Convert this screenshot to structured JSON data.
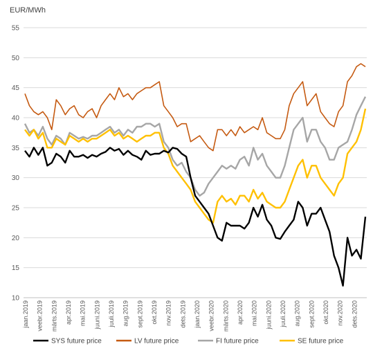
{
  "chart_data": {
    "type": "line",
    "unit_label": "EUR/MWh",
    "ylim": [
      10,
      55
    ],
    "y_ticks": [
      10,
      15,
      20,
      25,
      30,
      35,
      40,
      45,
      50,
      55
    ],
    "grid": "horizontal",
    "legend_position": "bottom",
    "x_tick_labels": [
      "jaan.2019",
      "veebr.2019",
      "märts.2019",
      "apr.2019",
      "mai.2019",
      "juuni.2019",
      "juuli.2019",
      "aug.2019",
      "sept.2019",
      "okt.2019",
      "nov.2019",
      "dets.2019",
      "jaan.2020",
      "veebr.2020",
      "märts.2020",
      "apr.2020",
      "mai.2020",
      "juuni.2020",
      "juuli.2020",
      "aug.2020",
      "sept.2020",
      "okt.2020",
      "nov.2020",
      "dets.2020"
    ],
    "series": [
      {
        "name": "SYS future price",
        "color": "#000000",
        "values": [
          34.5,
          33.5,
          35,
          33.8,
          35,
          32,
          32.5,
          34,
          33.5,
          32.5,
          34.5,
          33.5,
          33.5,
          33.8,
          33.3,
          33.8,
          33.5,
          34,
          34.3,
          35,
          34.5,
          34.8,
          33.8,
          34.5,
          33.8,
          33.5,
          33,
          34.5,
          33.8,
          34,
          34,
          34.5,
          34.2,
          35,
          34.8,
          34,
          33.5,
          30,
          27,
          26,
          25,
          24,
          22,
          20,
          19.5,
          22.5,
          22,
          22,
          22,
          21.5,
          22.5,
          25,
          23.5,
          25.5,
          23,
          22,
          20,
          19.8,
          21,
          22,
          23,
          26,
          25,
          22,
          24,
          24,
          25,
          23,
          21,
          17,
          15,
          12,
          20,
          17,
          18,
          16.5,
          23.5
        ]
      },
      {
        "name": "LV future price",
        "color": "#c55a11",
        "values": [
          44,
          42,
          41,
          40.5,
          41,
          40,
          38,
          43,
          42,
          40.5,
          41.5,
          42,
          40.5,
          40,
          41,
          41.5,
          40,
          42,
          43,
          44,
          43,
          45,
          43.5,
          44,
          43,
          44,
          44.5,
          45,
          45,
          45.5,
          46,
          42,
          41,
          40,
          38.5,
          39,
          39,
          36,
          36.5,
          37,
          36,
          35,
          34.5,
          38,
          38,
          37,
          38,
          37,
          38.5,
          37.5,
          38,
          38.5,
          38,
          40,
          37.5,
          37,
          36.5,
          36.5,
          38,
          42,
          44,
          45,
          46,
          42,
          43,
          44,
          41,
          40,
          39,
          38.5,
          41,
          42,
          46,
          47,
          48.5,
          49,
          48.5
        ]
      },
      {
        "name": "FI future price",
        "color": "#a6a6a6",
        "values": [
          39,
          37.5,
          38,
          37,
          38.5,
          36.5,
          35.5,
          37,
          36.5,
          35.5,
          37.5,
          37,
          36.5,
          36.8,
          36.5,
          37,
          37,
          37.5,
          38,
          38.5,
          37.5,
          38,
          37,
          38,
          37.5,
          38.5,
          38.5,
          39,
          39,
          38.5,
          39,
          36,
          35,
          33,
          32,
          32.5,
          31,
          30,
          28,
          27,
          27.5,
          29,
          30,
          31,
          32,
          31.5,
          32,
          31.5,
          33,
          33.5,
          32,
          35,
          33,
          34,
          32,
          31,
          30,
          30,
          32,
          35,
          38,
          39,
          40,
          36,
          38,
          38,
          36,
          35,
          33,
          33,
          35,
          35.5,
          36,
          38,
          40.5,
          42,
          43.5
        ]
      },
      {
        "name": "SE future price",
        "color": "#ffc000",
        "values": [
          38,
          37,
          38,
          36.5,
          37.5,
          35,
          35,
          36.5,
          36,
          35.5,
          37,
          36.5,
          36,
          36.5,
          36,
          36.5,
          36.5,
          37,
          37.5,
          38,
          37,
          37.5,
          36.5,
          37,
          36.5,
          36,
          36.5,
          37,
          37,
          37.5,
          37.5,
          35,
          34,
          32,
          31,
          30,
          29,
          28,
          26,
          25,
          24,
          23,
          22.5,
          26,
          27,
          26,
          26.5,
          25.5,
          27,
          27,
          26,
          28,
          26.5,
          27.5,
          26,
          25.5,
          25,
          25,
          26,
          28,
          30,
          32,
          33,
          30,
          32,
          32,
          30,
          29,
          28,
          27,
          29,
          30,
          34,
          35,
          36,
          38,
          41.5
        ]
      }
    ]
  }
}
